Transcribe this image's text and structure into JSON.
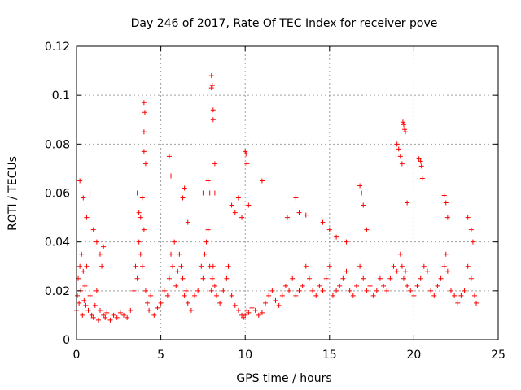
{
  "chart_data": {
    "type": "scatter",
    "title": "Day 246 of 2017, Rate Of TEC Index for receiver pove",
    "xlabel": "GPS time / hours",
    "ylabel": "ROTI / TECUs",
    "xlim": [
      0,
      25
    ],
    "ylim": [
      0,
      0.12
    ],
    "xticks": [
      "0",
      "5",
      "10",
      "15",
      "20",
      "25"
    ],
    "yticks": [
      "0",
      "0.02",
      "0.04",
      "0.06",
      "0.08",
      "0.1",
      "0.12"
    ],
    "grid": true,
    "marker": "+",
    "color": "#ff0000",
    "series": [
      {
        "x": [
          0.0,
          0.05,
          0.1,
          0.15,
          0.2,
          0.25,
          0.3,
          0.35,
          0.4,
          0.45,
          0.5,
          0.55,
          0.6,
          0.7,
          0.8,
          0.9,
          1.0,
          1.1,
          1.2,
          1.3,
          1.4,
          1.5,
          1.6,
          1.7,
          1.8,
          2.0,
          2.2,
          2.4,
          2.6,
          2.8,
          3.0,
          3.2,
          3.4,
          3.5,
          3.6,
          3.7,
          3.8,
          3.9,
          4.0,
          4.1,
          4.2,
          4.3,
          4.4,
          4.6,
          4.8,
          5.0,
          5.2,
          5.4,
          5.5,
          5.6,
          5.7,
          5.8,
          5.9,
          6.0,
          6.1,
          6.2,
          6.3,
          6.4,
          6.5,
          6.6,
          6.8,
          7.0,
          7.2,
          7.4,
          7.5,
          7.6,
          7.7,
          7.8,
          7.9,
          8.0,
          8.05,
          8.1,
          8.2,
          8.3,
          8.5,
          8.7,
          8.9,
          9.0,
          9.2,
          9.4,
          9.6,
          9.8,
          9.9,
          10.0,
          10.1,
          10.2,
          10.4,
          10.6,
          10.8,
          11.0,
          11.2,
          11.4,
          11.6,
          11.8,
          12.0,
          12.2,
          12.4,
          12.6,
          12.8,
          13.0,
          13.2,
          13.4,
          13.6,
          13.8,
          14.0,
          14.2,
          14.4,
          14.6,
          14.8,
          15.0,
          15.2,
          15.4,
          15.6,
          15.8,
          16.0,
          16.2,
          16.4,
          16.6,
          16.8,
          17.0,
          17.2,
          17.4,
          17.6,
          17.8,
          18.0,
          18.2,
          18.4,
          18.6,
          18.8,
          19.0,
          19.2,
          19.3,
          19.4,
          19.5,
          19.6,
          19.8,
          20.0,
          20.2,
          20.4,
          20.6,
          20.8,
          21.0,
          21.2,
          21.4,
          21.6,
          21.8,
          21.9,
          22.0,
          22.2,
          22.4,
          22.6,
          22.8,
          23.0,
          23.2,
          23.4,
          23.6,
          23.7,
          0.2,
          0.4,
          0.6,
          0.8,
          1.0,
          1.2,
          1.4,
          1.6,
          3.6,
          3.7,
          3.8,
          3.9,
          4.0,
          4.0,
          4.0,
          4.05,
          4.1,
          5.5,
          5.6,
          6.3,
          6.4,
          6.6,
          7.5,
          7.8,
          7.9,
          8.0,
          8.0,
          8.05,
          8.1,
          8.1,
          8.2,
          8.2,
          9.2,
          9.4,
          9.6,
          9.8,
          10.0,
          10.05,
          10.1,
          10.2,
          11.0,
          12.5,
          13.0,
          13.2,
          13.6,
          14.6,
          15.0,
          15.4,
          16.0,
          16.8,
          16.9,
          17.0,
          17.2,
          19.0,
          19.1,
          19.2,
          19.3,
          19.35,
          19.4,
          19.45,
          19.5,
          19.6,
          20.3,
          20.4,
          20.45,
          20.5,
          21.8,
          21.9,
          22.0,
          23.2,
          23.4,
          23.5
        ],
        "y": [
          0.012,
          0.018,
          0.025,
          0.015,
          0.03,
          0.02,
          0.035,
          0.01,
          0.028,
          0.016,
          0.022,
          0.014,
          0.03,
          0.012,
          0.018,
          0.01,
          0.009,
          0.014,
          0.02,
          0.008,
          0.012,
          0.03,
          0.01,
          0.009,
          0.011,
          0.008,
          0.01,
          0.009,
          0.011,
          0.01,
          0.009,
          0.012,
          0.02,
          0.03,
          0.025,
          0.04,
          0.035,
          0.03,
          0.045,
          0.02,
          0.015,
          0.012,
          0.018,
          0.01,
          0.013,
          0.015,
          0.02,
          0.018,
          0.025,
          0.035,
          0.03,
          0.04,
          0.022,
          0.028,
          0.035,
          0.03,
          0.025,
          0.018,
          0.02,
          0.015,
          0.012,
          0.018,
          0.02,
          0.03,
          0.025,
          0.035,
          0.04,
          0.045,
          0.03,
          0.02,
          0.025,
          0.03,
          0.022,
          0.018,
          0.015,
          0.02,
          0.025,
          0.03,
          0.018,
          0.014,
          0.012,
          0.01,
          0.009,
          0.01,
          0.012,
          0.011,
          0.013,
          0.012,
          0.01,
          0.011,
          0.015,
          0.018,
          0.02,
          0.016,
          0.014,
          0.018,
          0.022,
          0.02,
          0.025,
          0.018,
          0.02,
          0.022,
          0.03,
          0.025,
          0.02,
          0.018,
          0.022,
          0.02,
          0.025,
          0.03,
          0.018,
          0.02,
          0.022,
          0.025,
          0.028,
          0.02,
          0.018,
          0.022,
          0.03,
          0.025,
          0.02,
          0.022,
          0.018,
          0.02,
          0.025,
          0.022,
          0.02,
          0.025,
          0.03,
          0.028,
          0.035,
          0.03,
          0.025,
          0.028,
          0.022,
          0.02,
          0.018,
          0.022,
          0.025,
          0.03,
          0.028,
          0.02,
          0.018,
          0.022,
          0.025,
          0.03,
          0.035,
          0.028,
          0.02,
          0.018,
          0.015,
          0.018,
          0.02,
          0.03,
          0.025,
          0.018,
          0.015,
          0.065,
          0.058,
          0.05,
          0.06,
          0.045,
          0.04,
          0.035,
          0.038,
          0.06,
          0.052,
          0.05,
          0.058,
          0.077,
          0.085,
          0.097,
          0.093,
          0.072,
          0.075,
          0.067,
          0.058,
          0.062,
          0.048,
          0.06,
          0.065,
          0.06,
          0.108,
          0.103,
          0.104,
          0.094,
          0.09,
          0.072,
          0.06,
          0.055,
          0.052,
          0.058,
          0.05,
          0.077,
          0.076,
          0.072,
          0.055,
          0.065,
          0.05,
          0.058,
          0.052,
          0.051,
          0.048,
          0.045,
          0.042,
          0.04,
          0.063,
          0.06,
          0.055,
          0.045,
          0.08,
          0.078,
          0.075,
          0.072,
          0.089,
          0.088,
          0.086,
          0.085,
          0.056,
          0.074,
          0.073,
          0.071,
          0.066,
          0.059,
          0.056,
          0.05,
          0.05,
          0.045,
          0.04
        ]
      }
    ]
  }
}
